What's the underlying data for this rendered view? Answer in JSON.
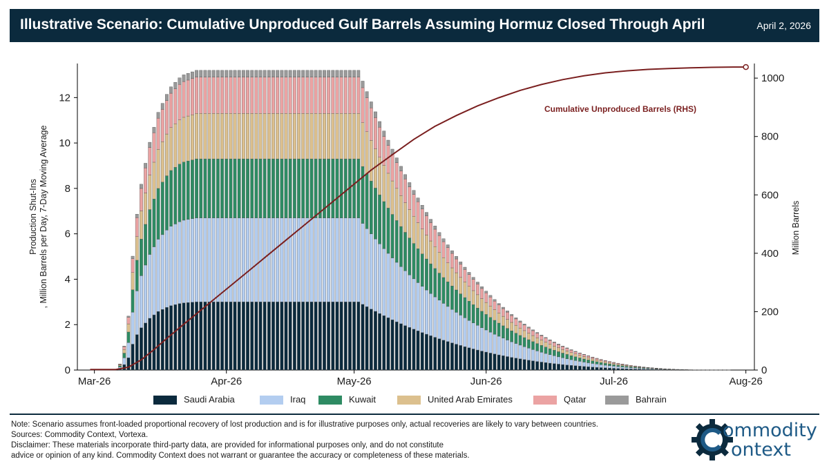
{
  "header": {
    "title": "Illustrative Scenario: Cumulative Unproduced Gulf Barrels Assuming Hormuz Closed Through April",
    "date": "April 2, 2026"
  },
  "footer": {
    "note": "Note: Scenario assumes front-loaded proportional recovery of lost production and is for illustrative purposes only, actual recoveries are likely to vary between countries.",
    "sources": "Sources: Commodity Context, Vortexa.",
    "disclaimer1": "Disclaimer: These materials incorporate third-party data, are provided for informational purposes only, and do not constitute",
    "disclaimer2": "advice or opinion of any kind. Commodity Context does not warrant or guarantee the accuracy or completeness of these materials."
  },
  "logo": {
    "line1": "ommodity",
    "line2": "ontext"
  },
  "colors": {
    "header_bg": "#0b2a3d",
    "saudi": "#0b2a3d",
    "iraq": "#b3cdf0",
    "kuwait": "#2e8b63",
    "uae": "#dcc08e",
    "qatar": "#eba3a3",
    "bahrain": "#9a9a9a",
    "cumulative": "#7a1f1f",
    "logo": "#1e5a86"
  },
  "chart_data": {
    "type": "stacked-bar-with-line",
    "ylabel_left": "Production Shut-Ins\n, Million Barrels per Day, 7-Day Moving Average",
    "ylabel_right": "Million Barrels",
    "ylim_left": [
      0,
      13.5
    ],
    "ylim_right": [
      0,
      1050
    ],
    "yticks_left": [
      0,
      2,
      4,
      6,
      8,
      10,
      12
    ],
    "yticks_right": [
      0,
      200,
      400,
      600,
      800,
      1000
    ],
    "x_range_days": [
      -4,
      155
    ],
    "x_ticks": [
      {
        "day": 0,
        "label": "Mar-26"
      },
      {
        "day": 31,
        "label": "Apr-26"
      },
      {
        "day": 61,
        "label": "May-26"
      },
      {
        "day": 92,
        "label": "Jun-26"
      },
      {
        "day": 122,
        "label": "Jul-26"
      },
      {
        "day": 153,
        "label": "Aug-26"
      }
    ],
    "series": [
      {
        "name": "Saudi Arabia",
        "plateau": 3.0
      },
      {
        "name": "Iraq",
        "plateau": 3.7
      },
      {
        "name": "Kuwait",
        "plateau": 2.6
      },
      {
        "name": "United Arab Emirates",
        "plateau": 2.0
      },
      {
        "name": "Qatar",
        "plateau": 1.6
      },
      {
        "name": "Bahrain",
        "plateau": 0.3
      }
    ],
    "ramp_pct": [
      0.02,
      0.08,
      0.18,
      0.38,
      0.52,
      0.62,
      0.69,
      0.76,
      0.81,
      0.86,
      0.89,
      0.92,
      0.945,
      0.96,
      0.975,
      0.985,
      0.99,
      0.995,
      1.0
    ],
    "shutin_start_day": 6,
    "plateau_end_day": 62,
    "recovery_end_day": 150,
    "cumulative_line": {
      "name": "Cumulative Unproduced Barrels (RHS)",
      "points": [
        [
          -1,
          2
        ],
        [
          2,
          2
        ],
        [
          5,
          2
        ],
        [
          8,
          10
        ],
        [
          11,
          35
        ],
        [
          14,
          70
        ],
        [
          17,
          108
        ],
        [
          20,
          145
        ],
        [
          25,
          205
        ],
        [
          30,
          265
        ],
        [
          35,
          325
        ],
        [
          40,
          385
        ],
        [
          45,
          445
        ],
        [
          50,
          505
        ],
        [
          55,
          565
        ],
        [
          60,
          625
        ],
        [
          65,
          685
        ],
        [
          70,
          738
        ],
        [
          75,
          790
        ],
        [
          80,
          835
        ],
        [
          85,
          872
        ],
        [
          90,
          905
        ],
        [
          95,
          933
        ],
        [
          100,
          958
        ],
        [
          105,
          978
        ],
        [
          110,
          995
        ],
        [
          115,
          1008
        ],
        [
          120,
          1018
        ],
        [
          125,
          1025
        ],
        [
          130,
          1030
        ],
        [
          135,
          1033
        ],
        [
          140,
          1035
        ],
        [
          145,
          1037
        ],
        [
          150,
          1038
        ],
        [
          153,
          1038
        ]
      ],
      "end_marker_day": 153
    }
  }
}
